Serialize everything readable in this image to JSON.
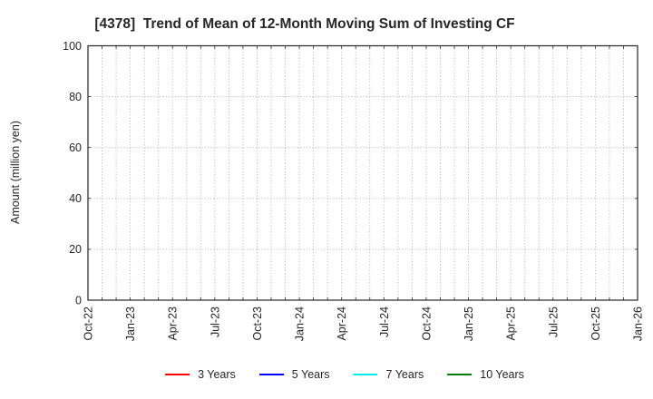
{
  "page": {
    "background": "#ffffff"
  },
  "chart_data": {
    "type": "line",
    "title": "[4378]  Trend of Mean of 12-Month Moving Sum of Investing CF",
    "ylabel": "Amount (million yen)",
    "xlabel": "",
    "ylim": [
      0,
      100
    ],
    "yticks": [
      0,
      20,
      40,
      60,
      80,
      100
    ],
    "x_tick_labels": [
      "Oct-22",
      "Jan-23",
      "Apr-23",
      "Jul-23",
      "Oct-23",
      "Jan-24",
      "Apr-24",
      "Jul-24",
      "Oct-24",
      "Jan-25",
      "Apr-25",
      "Jul-25",
      "Oct-25",
      "Jan-26"
    ],
    "x_total_months": 39,
    "x_label_every_months": 3,
    "grid": {
      "visible": true,
      "line_style": "dotted",
      "color": "#a8a8a8"
    },
    "axis_color": "#262626",
    "text_color": "#262626",
    "legend_position": "bottom-center",
    "series": [
      {
        "name": "3 Years",
        "color": "#ff0000",
        "values": []
      },
      {
        "name": "5 Years",
        "color": "#0000ff",
        "values": []
      },
      {
        "name": "7 Years",
        "color": "#00eeee",
        "values": []
      },
      {
        "name": "10 Years",
        "color": "#008000",
        "values": []
      }
    ]
  }
}
